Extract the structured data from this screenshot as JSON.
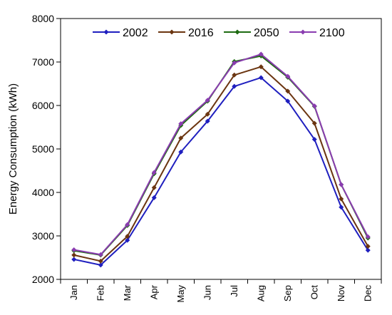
{
  "chart_data": {
    "type": "line",
    "title": "",
    "xlabel": "",
    "ylabel": "Energy Consumption (kWh)",
    "ylim": [
      2000,
      8000
    ],
    "yticks": [
      "2000",
      "3000",
      "4000",
      "5000",
      "6000",
      "7000",
      "8000"
    ],
    "categories": [
      "Jan",
      "Feb",
      "Mar",
      "Apr",
      "May",
      "Jun",
      "Jul",
      "Aug",
      "Sep",
      "Oct",
      "Nov",
      "Dec"
    ],
    "grid": false,
    "legend_position": "top",
    "series": [
      {
        "name": "2002",
        "color": "#1f1fbf",
        "values": [
          2460,
          2330,
          2900,
          3880,
          4930,
          5640,
          6440,
          6640,
          6100,
          5220,
          3660,
          2670
        ]
      },
      {
        "name": "2016",
        "color": "#6b3510",
        "values": [
          2560,
          2420,
          2990,
          4110,
          5250,
          5800,
          6700,
          6890,
          6330,
          5590,
          3850,
          2760
        ]
      },
      {
        "name": "2050",
        "color": "#1e6b12",
        "values": [
          2660,
          2560,
          3240,
          4430,
          5540,
          6100,
          7010,
          7140,
          6650,
          5980,
          4180,
          2950
        ]
      },
      {
        "name": "2100",
        "color": "#8a3cb0",
        "values": [
          2680,
          2570,
          3260,
          4460,
          5580,
          6120,
          6980,
          7180,
          6670,
          5990,
          4180,
          2980
        ]
      }
    ]
  }
}
